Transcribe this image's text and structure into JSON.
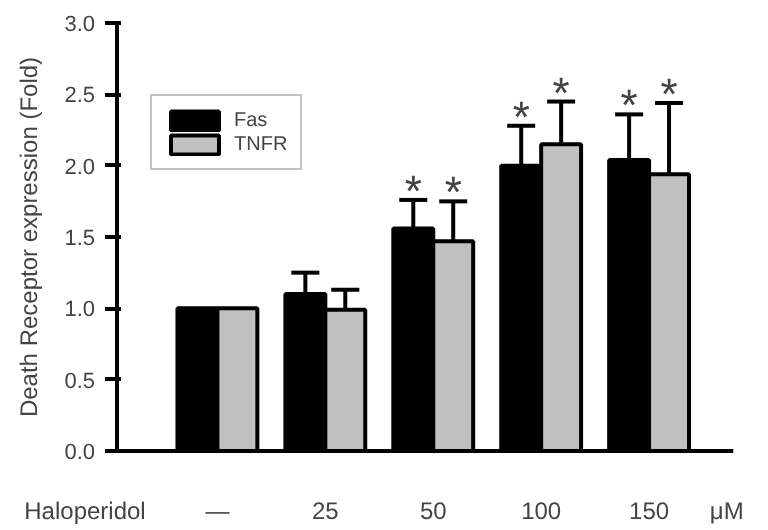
{
  "chart_data": {
    "type": "bar",
    "ylabel": "Death Receptor expression (Fold)",
    "categories": [
      "—",
      "25",
      "50",
      "100",
      "150"
    ],
    "series": [
      {
        "name": "Fas",
        "color": "#000000",
        "values": [
          1.0,
          1.1,
          1.56,
          2.0,
          2.04
        ],
        "errors": [
          null,
          [
            1.1,
            1.25
          ],
          [
            1.56,
            1.76
          ],
          [
            2.0,
            2.28
          ],
          [
            2.04,
            2.36
          ]
        ]
      },
      {
        "name": "TNFR",
        "color": "#c0c0c0",
        "values": [
          1.0,
          0.99,
          1.47,
          2.15,
          1.94
        ],
        "errors": [
          null,
          [
            0.99,
            1.13
          ],
          [
            1.47,
            1.75
          ],
          [
            2.15,
            2.45
          ],
          [
            1.94,
            2.44
          ]
        ]
      }
    ],
    "ylim": [
      0,
      3
    ],
    "yticks": [
      {
        "value": 0,
        "label": "0.0"
      },
      {
        "value": 0.5,
        "label": "0.5"
      },
      {
        "value": 1,
        "label": "1.0"
      },
      {
        "value": 1.5,
        "label": "1.5"
      },
      {
        "value": 2,
        "label": "2.0"
      },
      {
        "value": 2.5,
        "label": "2.5"
      },
      {
        "value": 3,
        "label": "3.0"
      }
    ],
    "legend": "top left",
    "grid": false,
    "annotations": [
      "Haloperidol",
      "μM",
      {
        "text": "*",
        "x": "50",
        "y": 1.76
      },
      {
        "text": "*",
        "x": "50",
        "y": 1.75
      },
      {
        "text": "*",
        "x": "100",
        "y": 2.28
      },
      {
        "text": "*",
        "x": "100",
        "y": 2.45
      },
      {
        "text": "*",
        "x": "150",
        "y": 2.36
      },
      {
        "text": "*",
        "x": "150",
        "y": 2.44
      }
    ]
  }
}
